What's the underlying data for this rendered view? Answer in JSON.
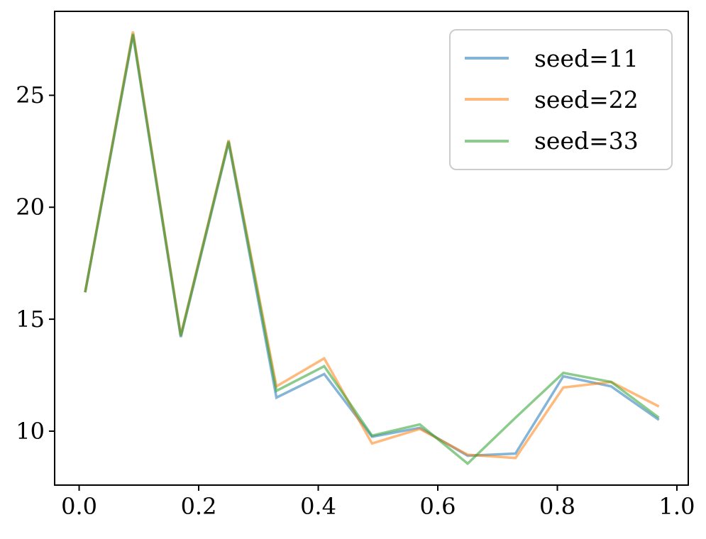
{
  "chart_data": {
    "type": "line",
    "title": "",
    "xlabel": "",
    "ylabel": "",
    "grid": false,
    "legend_position": "upper right",
    "line_opacity": 0.55,
    "line_width": 3.5,
    "xlim": [
      -0.041,
      1.019
    ],
    "ylim": [
      7.59,
      28.75
    ],
    "xticks": [
      0.0,
      0.2,
      0.4,
      0.6,
      0.8,
      1.0
    ],
    "xtick_labels": [
      "0.0",
      "0.2",
      "0.4",
      "0.6",
      "0.8",
      "1.0"
    ],
    "yticks": [
      10,
      15,
      20,
      25
    ],
    "ytick_labels": [
      "10",
      "15",
      "20",
      "25"
    ],
    "x": [
      0.01,
      0.09,
      0.17,
      0.25,
      0.33,
      0.41,
      0.49,
      0.57,
      0.65,
      0.73,
      0.81,
      0.89,
      0.97
    ],
    "series": [
      {
        "name": "seed=11",
        "color": "#1f77b4",
        "values": [
          16.2,
          27.7,
          14.2,
          22.9,
          11.5,
          12.55,
          9.75,
          10.15,
          8.9,
          9.0,
          12.45,
          12.0,
          10.5
        ]
      },
      {
        "name": "seed=22",
        "color": "#ff7f0e",
        "values": [
          16.2,
          27.85,
          14.3,
          23.0,
          12.0,
          13.25,
          9.45,
          10.1,
          8.95,
          8.8,
          11.95,
          12.2,
          11.1
        ]
      },
      {
        "name": "seed=33",
        "color": "#2ca02c",
        "values": [
          16.2,
          27.75,
          14.25,
          22.95,
          11.8,
          12.9,
          9.8,
          10.3,
          8.55,
          10.6,
          12.6,
          12.2,
          10.6
        ]
      }
    ]
  }
}
